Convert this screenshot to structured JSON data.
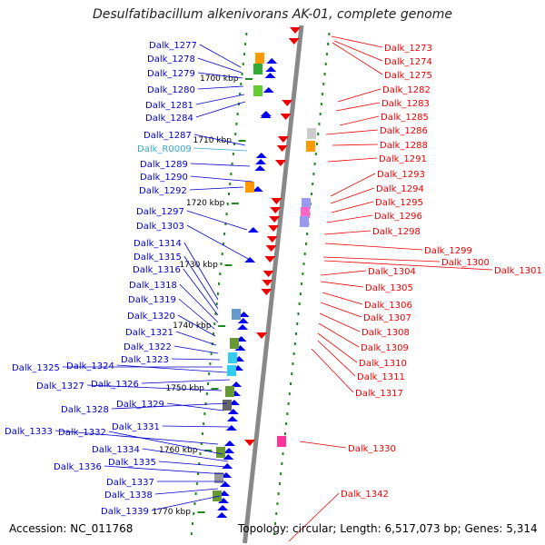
{
  "title": "Desulfatibacillum alkenivorans AK-01, complete genome",
  "accession": "Accession: NC_011768",
  "topology": "Topology: circular; Length: 6,517,073 bp; Genes: 5,314",
  "colors": {
    "left_label": "#0000cc",
    "rna_label": "#33aacc",
    "right_label": "#ee0000",
    "backbone": "#888888",
    "tick": "#228822",
    "left_gene": "#0000ee",
    "right_gene": "#ee0000"
  },
  "scale_labels": [
    "1700 kbp",
    "1710 kbp",
    "1720 kbp",
    "1730 kbp",
    "1740 kbp",
    "1750 kbp",
    "1760 kbp",
    "1770 kbp"
  ],
  "left_labels": [
    {
      "text": "Dalk_1277",
      "kind": "gene"
    },
    {
      "text": "Dalk_1278",
      "kind": "gene"
    },
    {
      "text": "Dalk_1279",
      "kind": "gene"
    },
    {
      "text": "Dalk_1280",
      "kind": "gene"
    },
    {
      "text": "Dalk_1281",
      "kind": "gene"
    },
    {
      "text": "Dalk_1284",
      "kind": "gene"
    },
    {
      "text": "Dalk_1287",
      "kind": "gene"
    },
    {
      "text": "Dalk_R0009",
      "kind": "rna"
    },
    {
      "text": "Dalk_1289",
      "kind": "gene"
    },
    {
      "text": "Dalk_1290",
      "kind": "gene"
    },
    {
      "text": "Dalk_1292",
      "kind": "gene"
    },
    {
      "text": "Dalk_1297",
      "kind": "gene"
    },
    {
      "text": "Dalk_1303",
      "kind": "gene"
    },
    {
      "text": "Dalk_1314",
      "kind": "gene"
    },
    {
      "text": "Dalk_1315",
      "kind": "gene"
    },
    {
      "text": "Dalk_1316",
      "kind": "gene"
    },
    {
      "text": "Dalk_1318",
      "kind": "gene"
    },
    {
      "text": "Dalk_1319",
      "kind": "gene"
    },
    {
      "text": "Dalk_1320",
      "kind": "gene"
    },
    {
      "text": "Dalk_1321",
      "kind": "gene"
    },
    {
      "text": "Dalk_1322",
      "kind": "gene"
    },
    {
      "text": "Dalk_1323",
      "kind": "gene"
    },
    {
      "text": "Dalk_1325",
      "kind": "gene"
    },
    {
      "text": "Dalk_1324",
      "kind": "gene"
    },
    {
      "text": "Dalk_1327",
      "kind": "gene"
    },
    {
      "text": "Dalk_1326",
      "kind": "gene"
    },
    {
      "text": "Dalk_1328",
      "kind": "gene"
    },
    {
      "text": "Dalk_1329",
      "kind": "gene"
    },
    {
      "text": "Dalk_1331",
      "kind": "gene"
    },
    {
      "text": "Dalk_1333",
      "kind": "gene"
    },
    {
      "text": "Dalk_1332",
      "kind": "gene"
    },
    {
      "text": "Dalk_1334",
      "kind": "gene"
    },
    {
      "text": "Dalk_1335",
      "kind": "gene"
    },
    {
      "text": "Dalk_1336",
      "kind": "gene"
    },
    {
      "text": "Dalk_1337",
      "kind": "gene"
    },
    {
      "text": "Dalk_1338",
      "kind": "gene"
    },
    {
      "text": "Dalk_1339",
      "kind": "gene"
    }
  ],
  "right_labels": [
    "Dalk_1273",
    "Dalk_1274",
    "Dalk_1275",
    "Dalk_1282",
    "Dalk_1283",
    "Dalk_1285",
    "Dalk_1286",
    "Dalk_1288",
    "Dalk_1291",
    "Dalk_1293",
    "Dalk_1294",
    "Dalk_1295",
    "Dalk_1296",
    "Dalk_1298",
    "Dalk_1299",
    "Dalk_1300",
    "Dalk_1301",
    "Dalk_1304",
    "Dalk_1305",
    "Dalk_1306",
    "Dalk_1307",
    "Dalk_1308",
    "Dalk_1309",
    "Dalk_1310",
    "Dalk_1311",
    "Dalk_1317",
    "Dalk_1330",
    "Dalk_1342"
  ]
}
